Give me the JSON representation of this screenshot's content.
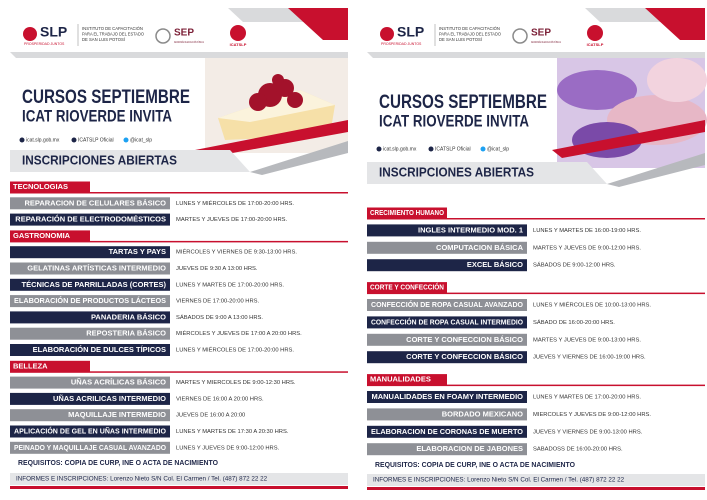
{
  "posters": [
    {
      "header": {
        "brand": "SLP",
        "brand_tagline": "PROSPERIDAD JUNTOS",
        "institute": [
          "INSTITUTO DE CAPACITACIÓN",
          "PARA EL TRABAJO DEL ESTADO",
          "DE SAN LUIS POTOSÍ"
        ],
        "sep": "SEP",
        "sep_name": "SECRETARÍA DE EDUCACIÓN PÚBLICA",
        "icat": "ICATSLP"
      },
      "title": "CURSOS SEPTIEMBRE",
      "subtitle": "ICAT RIOVERDE INVITA",
      "social": [
        "icat.slp.gob.mx",
        "ICATSLP Oficial",
        "@icat_slp"
      ],
      "banner": "INSCRIPCIONES ABIERTAS",
      "sections": [
        {
          "name": "TECNOLOGIAS",
          "courses": [
            {
              "name": "REPARACION DE CELULARES BÁSICO",
              "schedule": "LUNES Y MIÉRCOLES DE 17:00-20:00 HRS.",
              "color": "#8e9096"
            },
            {
              "name": "REPARACIÓN DE ELECTRODOMÉSTICOS",
              "schedule": "MARTES Y JUEVES DE 17:00-20:00 HRS.",
              "color": "#1d2547"
            }
          ]
        },
        {
          "name": "GASTRONOMIA",
          "courses": [
            {
              "name": "TARTAS Y PAYS",
              "schedule": "MIÉRCOLES Y VIERNES DE 9:30-13:00 HRS.",
              "color": "#1d2547"
            },
            {
              "name": "GELATINAS ARTÍSTICAS INTERMEDIO",
              "schedule": "JUEVES DE 9:30 A 13:00 HRS.",
              "color": "#8e9096"
            },
            {
              "name": "TÉCNICAS DE PARRILLADAS (CORTES)",
              "schedule": "LUNES Y MARTES DE 17:00-20:00 HRS.",
              "color": "#1d2547"
            },
            {
              "name": "ELABORACIÓN DE PRODUCTOS LÁCTEOS",
              "schedule": "VIERNES DE 17:00-20:00 HRS.",
              "color": "#8e9096"
            },
            {
              "name": "PANADERIA BÁSICO",
              "schedule": "SÁBADOS DE 9:00 A 13:00 HRS.",
              "color": "#1d2547"
            },
            {
              "name": "REPOSTERIA BÁSICO",
              "schedule": "MIÉRCOLES Y JUEVES DE 17:00 A 20:00 HRS.",
              "color": "#8e9096"
            },
            {
              "name": "ELABORACIÓN DE DULCES TÍPICOS",
              "schedule": "LUNES Y MIÉRCOLES DE 17:00-20:00 HRS.",
              "color": "#1d2547"
            }
          ]
        },
        {
          "name": "BELLEZA",
          "courses": [
            {
              "name": "UÑAS ACRÍLICAS BÁSICO",
              "schedule": "MARTES Y MIERCOLES DE 9:00-12:30 HRS.",
              "color": "#8e9096"
            },
            {
              "name": "UÑAS ACRILICAS INTERMEDIO",
              "schedule": "VIERNES DE 16:00 A 20:00 HRS.",
              "color": "#1d2547"
            },
            {
              "name": "MAQUILLAJE INTERMEDIO",
              "schedule": "JUEVES DE 16:00 A 20:00",
              "color": "#8e9096"
            },
            {
              "name": "APLICACIÓN DE GEL EN UÑAS INTERMEDIO",
              "schedule": "LUNES Y MARTES DE 17:30 A 20:30 HRS.",
              "color": "#1d2547"
            },
            {
              "name": "PEINADO Y MAQUILLAJE CASUAL AVANZADO",
              "schedule": "LUNES Y JUEVES DE 9:00-12:00 HRS.",
              "color": "#8e9096"
            }
          ]
        }
      ],
      "requirements": "REQUISITOS: COPIA DE CURP, INE O ACTA DE NACIMIENTO",
      "contact": "INFORMES E INSCRIPCIONES: Lorenzo Nieto S/N Col. El Carmen / Tel. (487) 872 22 22"
    },
    {
      "header": {
        "brand": "SLP",
        "brand_tagline": "PROSPERIDAD JUNTOS",
        "institute": [
          "INSTITUTO DE CAPACITACIÓN",
          "PARA EL TRABAJO DEL ESTADO",
          "DE SAN LUIS POTOSÍ"
        ],
        "sep": "SEP",
        "sep_name": "SECRETARÍA DE EDUCACIÓN PÚBLICA",
        "icat": "ICATSLP"
      },
      "title": "CURSOS SEPTIEMBRE",
      "subtitle": "ICAT RIOVERDE INVITA",
      "social": [
        "icat.slp.gob.mx",
        "ICATSLP Oficial",
        "@icat_slp"
      ],
      "banner": "INSCRIPCIONES ABIERTAS",
      "sections": [
        {
          "name": "CRECIMIENTO HUMANO",
          "courses": [
            {
              "name": "INGLES INTERMEDIO MOD. 1",
              "schedule": "LUNES Y MARTES DE 16:00-19:00 HRS.",
              "color": "#1d2547"
            },
            {
              "name": "COMPUTACION BÁSICA",
              "schedule": "MARTES Y JUEVES DE 9:00-12:00 HRS.",
              "color": "#8e9096"
            },
            {
              "name": "EXCEL BÁSICO",
              "schedule": "SÁBADOS DE 9:00-12:00 HRS.",
              "color": "#1d2547"
            }
          ]
        },
        {
          "name": "CORTE Y CONFECCIÓN",
          "courses": [
            {
              "name": "CONFECCIÓN DE ROPA CASUAL AVANZADO",
              "schedule": "LUNES Y MIÉRCOLES DE 10:00-13:00 HRS.",
              "color": "#8e9096"
            },
            {
              "name": "CONFECCIÓN DE ROPA CASUAL INTERMEDIO",
              "schedule": "SÁBADO DE 16:00-20:00 HRS.",
              "color": "#1d2547"
            },
            {
              "name": "CORTE Y CONFECCION BÁSICO",
              "schedule": "MARTES Y JUEVES DE 9:00-13:00 HRS.",
              "color": "#8e9096"
            },
            {
              "name": "CORTE Y CONFECCION BÁSICO",
              "schedule": "JUEVES Y VIERNES DE 16:00-19:00 HRS.",
              "color": "#1d2547"
            }
          ]
        },
        {
          "name": "MANUALIDADES",
          "courses": [
            {
              "name": "MANUALIDADES EN FOAMY INTERMEDIO",
              "schedule": "LUNES Y MARTES DE 17:00-20:00 HRS.",
              "color": "#1d2547"
            },
            {
              "name": "BORDADO MEXICANO",
              "schedule": "MIERCOLES Y JUEVES DE 9:00-12:00 HRS.",
              "color": "#8e9096"
            },
            {
              "name": "ELABORACION DE CORONAS DE MUERTO",
              "schedule": "JUEVES Y VIERNES DE 9:00-13:00 HRS.",
              "color": "#1d2547"
            },
            {
              "name": "ELABORACION DE JABONES",
              "schedule": "SABADOSS DE 16:00-20:00 HRS.",
              "color": "#8e9096"
            }
          ]
        }
      ],
      "requirements": "REQUISITOS: COPIA DE CURP, INE O ACTA DE NACIMIENTO",
      "contact": "INFORMES E INSCRIPCIONES: Lorenzo Nieto S/N Col. El Carmen / Tel. (487) 872 22 22"
    }
  ]
}
